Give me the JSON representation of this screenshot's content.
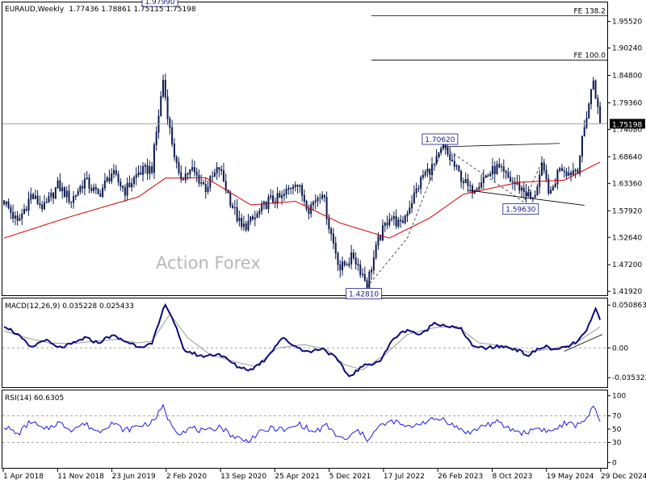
{
  "header": {
    "symbol": "EURAUD,Weekly",
    "ohlc": "1.77436 1.78861 1.75115 1.75198"
  },
  "watermark": "Action Forex",
  "colors": {
    "candle": "#0b1a4f",
    "ma": "#d40000",
    "macd": "#0b0b7a",
    "signal": "#999999",
    "rsi": "#1c1ce0",
    "grid": "#9a9a9a"
  },
  "chart_data": [
    {
      "type": "candlestick",
      "title": "EURAUD,Weekly",
      "x_ticks": [
        "1 Apr 2018",
        "11 Nov 2018",
        "23 Jun 2019",
        "2 Feb 2020",
        "13 Sep 2020",
        "25 Apr 2021",
        "5 Dec 2021",
        "17 Jul 2022",
        "26 Feb 2023",
        "8 Oct 2023",
        "19 May 2024",
        "29 Dec 2024"
      ],
      "y_ticks": [
        "1.95520",
        "1.90240",
        "1.84800",
        "1.79360",
        "1.74080",
        "1.68640",
        "1.63360",
        "1.57920",
        "1.52640",
        "1.47200",
        "1.41920"
      ],
      "ylim": [
        1.4115,
        1.9929
      ],
      "last_price": "1.75198",
      "close_path": [
        [
          0,
          1.6
        ],
        [
          6,
          1.555
        ],
        [
          12,
          1.61
        ],
        [
          18,
          1.585
        ],
        [
          24,
          1.63
        ],
        [
          30,
          1.6
        ],
        [
          36,
          1.64
        ],
        [
          42,
          1.61
        ],
        [
          48,
          1.655
        ],
        [
          54,
          1.62
        ],
        [
          60,
          1.655
        ],
        [
          66,
          1.665
        ],
        [
          71,
          1.84
        ],
        [
          74,
          1.74
        ],
        [
          78,
          1.645
        ],
        [
          84,
          1.66
        ],
        [
          90,
          1.625
        ],
        [
          96,
          1.665
        ],
        [
          101,
          1.6
        ],
        [
          106,
          1.545
        ],
        [
          112,
          1.565
        ],
        [
          118,
          1.6
        ],
        [
          124,
          1.605
        ],
        [
          130,
          1.64
        ],
        [
          136,
          1.585
        ],
        [
          142,
          1.62
        ],
        [
          145,
          1.55
        ],
        [
          150,
          1.465
        ],
        [
          156,
          1.49
        ],
        [
          162,
          1.435
        ],
        [
          167,
          1.52
        ],
        [
          172,
          1.57
        ],
        [
          177,
          1.55
        ],
        [
          182,
          1.6
        ],
        [
          187,
          1.65
        ],
        [
          192,
          1.67
        ],
        [
          196,
          1.706
        ],
        [
          202,
          1.66
        ],
        [
          208,
          1.62
        ],
        [
          214,
          1.645
        ],
        [
          220,
          1.665
        ],
        [
          226,
          1.64
        ],
        [
          232,
          1.62
        ],
        [
          236,
          1.6
        ],
        [
          240,
          1.665
        ],
        [
          244,
          1.61
        ],
        [
          248,
          1.67
        ],
        [
          252,
          1.655
        ],
        [
          256,
          1.665
        ],
        [
          260,
          1.77
        ],
        [
          263,
          1.84
        ],
        [
          266,
          1.752
        ]
      ],
      "ma_path": [
        [
          0,
          1.525
        ],
        [
          30,
          1.568
        ],
        [
          60,
          1.607
        ],
        [
          72,
          1.644
        ],
        [
          90,
          1.645
        ],
        [
          110,
          1.591
        ],
        [
          130,
          1.598
        ],
        [
          150,
          1.555
        ],
        [
          172,
          1.525
        ],
        [
          190,
          1.565
        ],
        [
          205,
          1.612
        ],
        [
          230,
          1.636
        ],
        [
          250,
          1.64
        ],
        [
          266,
          1.676
        ]
      ],
      "annotations": [
        {
          "label": "1.97990",
          "week": 71,
          "price": 1.9799,
          "side": "above"
        },
        {
          "label": "1.70620",
          "week": 196,
          "price": 1.7062,
          "side": "above"
        },
        {
          "label": "1.59630",
          "week": 232,
          "price": 1.5963,
          "side": "below"
        },
        {
          "label": "1.42810",
          "week": 162,
          "price": 1.4281,
          "side": "below"
        }
      ],
      "levels": [
        {
          "label": "FE 138.2",
          "price": 1.9667
        },
        {
          "label": "FE 100.0",
          "price": 1.8785
        }
      ]
    },
    {
      "type": "line",
      "title": "MACD(12,26,9) 0.035228 0.025433",
      "y_ticks": [
        "0.050863",
        "0.00",
        "-0.035322"
      ],
      "ylim": [
        -0.0466,
        0.0587
      ],
      "macd_path": [
        [
          0,
          0.027
        ],
        [
          6,
          0.016
        ],
        [
          12,
          0.0
        ],
        [
          18,
          0.01
        ],
        [
          24,
          0.0
        ],
        [
          30,
          0.004
        ],
        [
          36,
          0.012
        ],
        [
          42,
          0.006
        ],
        [
          48,
          0.015
        ],
        [
          54,
          0.008
        ],
        [
          60,
          0.002
        ],
        [
          66,
          0.004
        ],
        [
          72,
          0.053
        ],
        [
          76,
          0.03
        ],
        [
          80,
          -0.002
        ],
        [
          88,
          -0.01
        ],
        [
          96,
          -0.007
        ],
        [
          104,
          -0.022
        ],
        [
          110,
          -0.026
        ],
        [
          116,
          -0.015
        ],
        [
          124,
          0.012
        ],
        [
          130,
          0.002
        ],
        [
          136,
          -0.005
        ],
        [
          142,
          0.0
        ],
        [
          148,
          -0.012
        ],
        [
          154,
          -0.034
        ],
        [
          160,
          -0.022
        ],
        [
          168,
          -0.015
        ],
        [
          174,
          0.012
        ],
        [
          180,
          0.022
        ],
        [
          186,
          0.015
        ],
        [
          192,
          0.03
        ],
        [
          198,
          0.026
        ],
        [
          204,
          0.022
        ],
        [
          210,
          0.0
        ],
        [
          216,
          0.0
        ],
        [
          222,
          0.002
        ],
        [
          228,
          -0.001
        ],
        [
          234,
          -0.009
        ],
        [
          238,
          -0.002
        ],
        [
          242,
          0.002
        ],
        [
          246,
          -0.003
        ],
        [
          252,
          0.002
        ],
        [
          256,
          0.008
        ],
        [
          260,
          0.02
        ],
        [
          264,
          0.046
        ],
        [
          266,
          0.035
        ]
      ],
      "signal_path": [
        [
          0,
          0.02
        ],
        [
          10,
          0.012
        ],
        [
          20,
          0.006
        ],
        [
          30,
          0.005
        ],
        [
          40,
          0.008
        ],
        [
          50,
          0.01
        ],
        [
          60,
          0.006
        ],
        [
          66,
          0.008
        ],
        [
          74,
          0.04
        ],
        [
          82,
          0.012
        ],
        [
          92,
          -0.008
        ],
        [
          104,
          -0.017
        ],
        [
          112,
          -0.022
        ],
        [
          122,
          0.0
        ],
        [
          134,
          0.004
        ],
        [
          144,
          -0.002
        ],
        [
          152,
          -0.02
        ],
        [
          160,
          -0.026
        ],
        [
          170,
          -0.008
        ],
        [
          180,
          0.016
        ],
        [
          192,
          0.024
        ],
        [
          202,
          0.026
        ],
        [
          212,
          0.006
        ],
        [
          224,
          0.002
        ],
        [
          234,
          -0.005
        ],
        [
          244,
          -0.001
        ],
        [
          254,
          0.004
        ],
        [
          262,
          0.018
        ],
        [
          266,
          0.025
        ]
      ]
    },
    {
      "type": "line",
      "title": "RSI(14) 60.6305",
      "y_ticks": [
        "100",
        "70",
        "50",
        "30",
        "0"
      ],
      "ylim": [
        -8,
        108
      ],
      "levels": [
        70,
        30
      ],
      "rsi_path": [
        [
          0,
          55
        ],
        [
          6,
          42
        ],
        [
          12,
          62
        ],
        [
          18,
          48
        ],
        [
          24,
          60
        ],
        [
          30,
          50
        ],
        [
          36,
          58
        ],
        [
          42,
          46
        ],
        [
          48,
          60
        ],
        [
          54,
          48
        ],
        [
          60,
          55
        ],
        [
          66,
          60
        ],
        [
          71,
          83
        ],
        [
          74,
          60
        ],
        [
          78,
          45
        ],
        [
          84,
          52
        ],
        [
          90,
          45
        ],
        [
          96,
          55
        ],
        [
          102,
          40
        ],
        [
          108,
          32
        ],
        [
          114,
          44
        ],
        [
          120,
          52
        ],
        [
          126,
          48
        ],
        [
          132,
          58
        ],
        [
          138,
          45
        ],
        [
          144,
          55
        ],
        [
          148,
          42
        ],
        [
          152,
          33
        ],
        [
          158,
          48
        ],
        [
          162,
          35
        ],
        [
          168,
          55
        ],
        [
          174,
          62
        ],
        [
          180,
          52
        ],
        [
          186,
          60
        ],
        [
          192,
          64
        ],
        [
          196,
          66
        ],
        [
          202,
          52
        ],
        [
          208,
          44
        ],
        [
          214,
          56
        ],
        [
          220,
          60
        ],
        [
          226,
          50
        ],
        [
          232,
          44
        ],
        [
          238,
          52
        ],
        [
          244,
          46
        ],
        [
          250,
          58
        ],
        [
          256,
          56
        ],
        [
          260,
          68
        ],
        [
          263,
          82
        ],
        [
          266,
          61
        ]
      ]
    }
  ],
  "macd_header": "MACD(12,26,9) 0.035228 0.025433",
  "rsi_header": "RSI(14) 60.6305"
}
